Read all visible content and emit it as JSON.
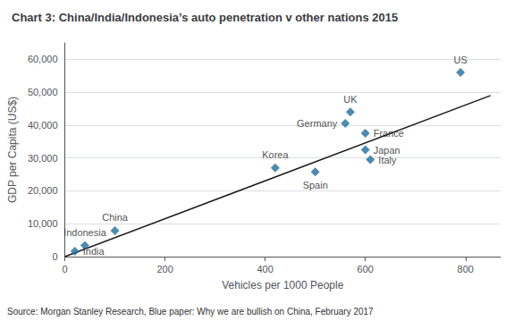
{
  "chart_data": {
    "type": "scatter",
    "title": "Chart 3: China/India/Indonesia’s auto penetration v other nations 2015",
    "xlabel": "Vehicles per 1000 People",
    "ylabel": "GDP per Capita (US$)",
    "annotations": [
      "Source: Morgan Stanley Research, Blue paper: Why we are bullish on China, February 2017"
    ],
    "series": [
      {
        "type": "scatter",
        "color": "#1f6e9c",
        "marker": "diamond",
        "labels": [
          "India",
          "Indonesia",
          "China",
          "Korea",
          "Spain",
          "Germany",
          "UK",
          "France",
          "Japan",
          "Italy",
          "US"
        ],
        "x": [
          20,
          40,
          100,
          420,
          500,
          560,
          570,
          600,
          600,
          610,
          790
        ],
        "values": [
          1600,
          3400,
          7900,
          27000,
          25800,
          40500,
          44000,
          37500,
          32500,
          29500,
          56000
        ]
      },
      {
        "type": "line",
        "color": "#1a1a1a",
        "x": [
          0,
          850
        ],
        "values": [
          0,
          49000
        ]
      }
    ],
    "xlim": [
      0,
      870
    ],
    "ylim": [
      0,
      65000
    ],
    "xticks": [
      0,
      200,
      400,
      600,
      800
    ],
    "yticks": [
      0,
      {
        "value": 10000,
        "label": "10,000"
      },
      {
        "value": 20000,
        "label": "20,000"
      },
      {
        "value": 30000,
        "label": "30,000"
      },
      {
        "value": 40000,
        "label": "40,000"
      },
      {
        "value": 50000,
        "label": "50,000"
      },
      {
        "value": 60000,
        "label": "60,000"
      }
    ],
    "grid": "y"
  }
}
